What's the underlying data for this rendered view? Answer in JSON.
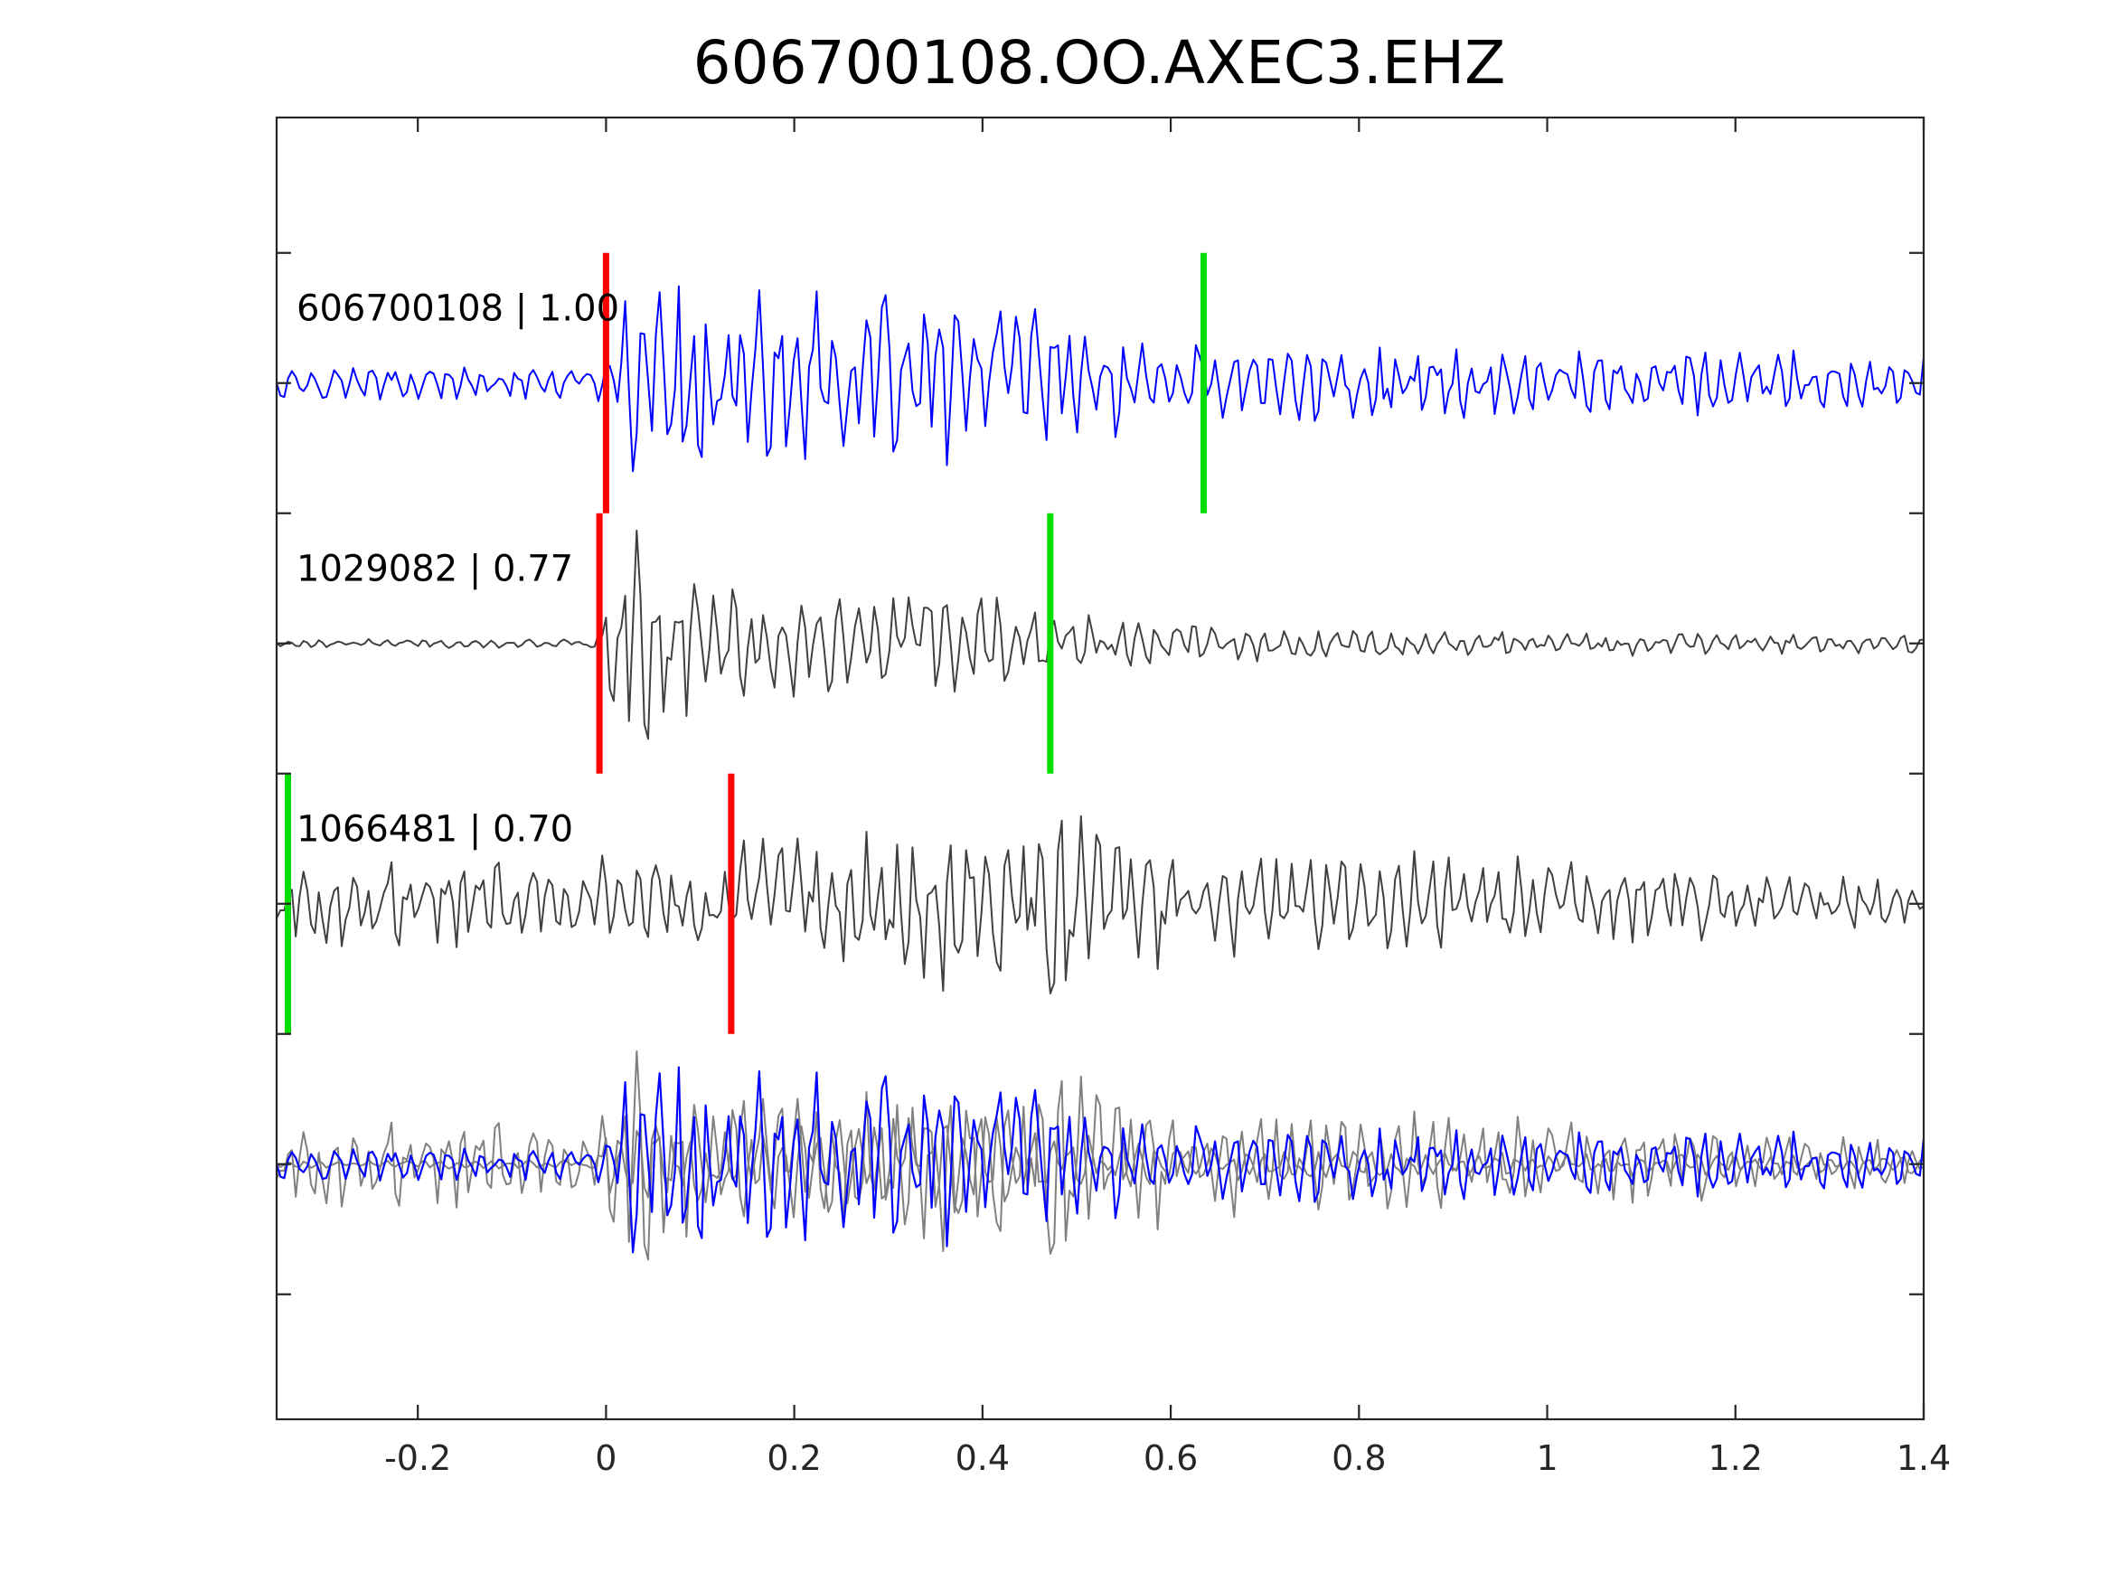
{
  "chart_data": {
    "type": "line",
    "title": "606700108.OO.AXEC3.EHZ",
    "xlabel": "",
    "ylabel": "",
    "xlim": [
      -0.35,
      1.4
    ],
    "xticks": [
      -0.2,
      0,
      0.2,
      0.4,
      0.6,
      0.8,
      1,
      1.2,
      1.4
    ],
    "xtick_labels": [
      "-0.2",
      "0",
      "0.2",
      "0.4",
      "0.6",
      "0.8",
      "1",
      "1.2",
      "1.4"
    ],
    "yticks_shown": true,
    "ytick_labels_shown": false,
    "grid": false,
    "colors": {
      "template": "#0000ff",
      "match": "#404040",
      "overlay_match": "#808080",
      "p_pick": "#ff0000",
      "s_pick": "#00dd00",
      "axes": "#262626"
    },
    "series": [
      {
        "label": "606700108 | 1.00",
        "event_id": "606700108",
        "correlation": 1.0,
        "color": "#0000ff",
        "onset": 0.02,
        "envelope": [
          [
            -0.35,
            0.12
          ],
          [
            0.0,
            0.14
          ],
          [
            0.03,
            0.95
          ],
          [
            0.1,
            0.7
          ],
          [
            0.35,
            0.72
          ],
          [
            0.5,
            0.6
          ],
          [
            0.62,
            0.35
          ],
          [
            0.8,
            0.28
          ],
          [
            1.4,
            0.24
          ]
        ],
        "p_pick": 0.0,
        "s_pick": 0.635
      },
      {
        "label": "1029082 | 0.77",
        "event_id": "1029082",
        "correlation": 0.77,
        "color": "#404040",
        "onset": 0.015,
        "envelope": [
          [
            -0.35,
            0.03
          ],
          [
            -0.01,
            0.04
          ],
          [
            0.02,
            0.95
          ],
          [
            0.1,
            0.5
          ],
          [
            0.3,
            0.42
          ],
          [
            0.48,
            0.3
          ],
          [
            0.6,
            0.16
          ],
          [
            0.8,
            0.11
          ],
          [
            1.4,
            0.08
          ]
        ],
        "p_pick": -0.007,
        "s_pick": 0.472
      },
      {
        "label": "1066481 | 0.70",
        "event_id": "1066481",
        "correlation": 0.7,
        "color": "#404040",
        "onset": 0.14,
        "envelope": [
          [
            -0.35,
            0.35
          ],
          [
            0.1,
            0.4
          ],
          [
            0.2,
            0.55
          ],
          [
            0.35,
            0.65
          ],
          [
            0.45,
            0.8
          ],
          [
            0.5,
            0.7
          ],
          [
            0.7,
            0.45
          ],
          [
            1.0,
            0.35
          ],
          [
            1.4,
            0.18
          ]
        ],
        "p_pick": 0.133,
        "s_pick": -0.338
      }
    ],
    "overlay": {
      "description_visible": false,
      "members": [
        "606700108",
        "1029082",
        "1066481"
      ]
    }
  }
}
